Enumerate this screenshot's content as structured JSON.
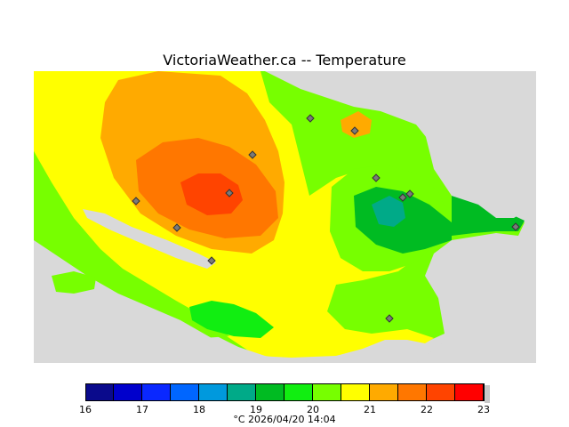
{
  "title": "VictoriaWeather.ca -- Temperature",
  "legend": {
    "ticks": [
      "16",
      "17",
      "18",
      "19",
      "20",
      "21",
      "22",
      "23"
    ],
    "colors": [
      "#0a0a8c",
      "#0000cc",
      "#0a28ff",
      "#0066ff",
      "#0099dd",
      "#00aa88",
      "#00bb22",
      "#11ee11",
      "#77ff00",
      "#ffff00",
      "#ffaa00",
      "#ff7700",
      "#ff4400",
      "#ff0000"
    ]
  },
  "footer": "°C  2026/04/20 14:04",
  "map": {
    "station_icon": "diamond-station-icon",
    "colors": {
      "land_mask": "#d9d9d9",
      "lightgreen": "#77ff00",
      "yellow": "#ffff00",
      "orange": "#ffaa00",
      "darkorange": "#ff7700",
      "red": "#ff4400",
      "green": "#11ee11",
      "darkgreen": "#00bb22",
      "teal": "#00aa88",
      "station": "#7a7a7a"
    }
  }
}
